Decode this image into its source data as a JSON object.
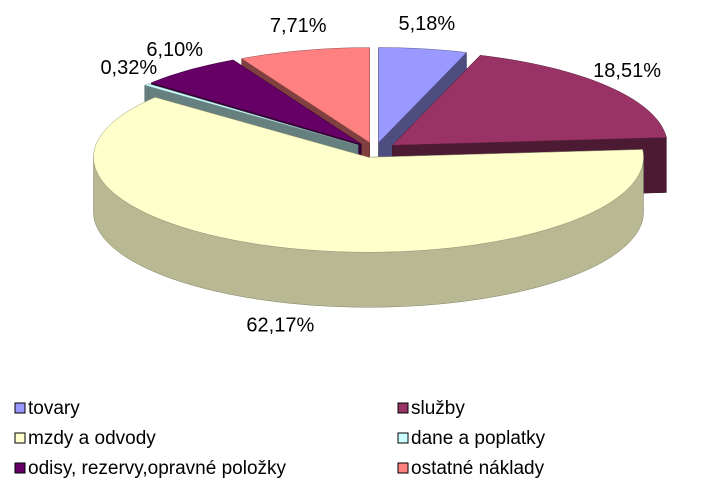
{
  "chart_data": {
    "type": "pie3d",
    "categories": [
      "tovary",
      "služby",
      "mzdy a odvody",
      "dane a poplatky",
      "odisy, rezervy,opravné položky",
      "ostatné náklady"
    ],
    "values": [
      5.18,
      18.51,
      62.17,
      0.32,
      6.1,
      7.71
    ],
    "value_labels": [
      "5,18%",
      "18,51%",
      "62,17%",
      "0,32%",
      "6,10%",
      "7,71%"
    ],
    "colors": [
      "#9999ff",
      "#993366",
      "#ffffcc",
      "#ccffff",
      "#660066",
      "#ff8080"
    ],
    "legend": "bottom"
  }
}
